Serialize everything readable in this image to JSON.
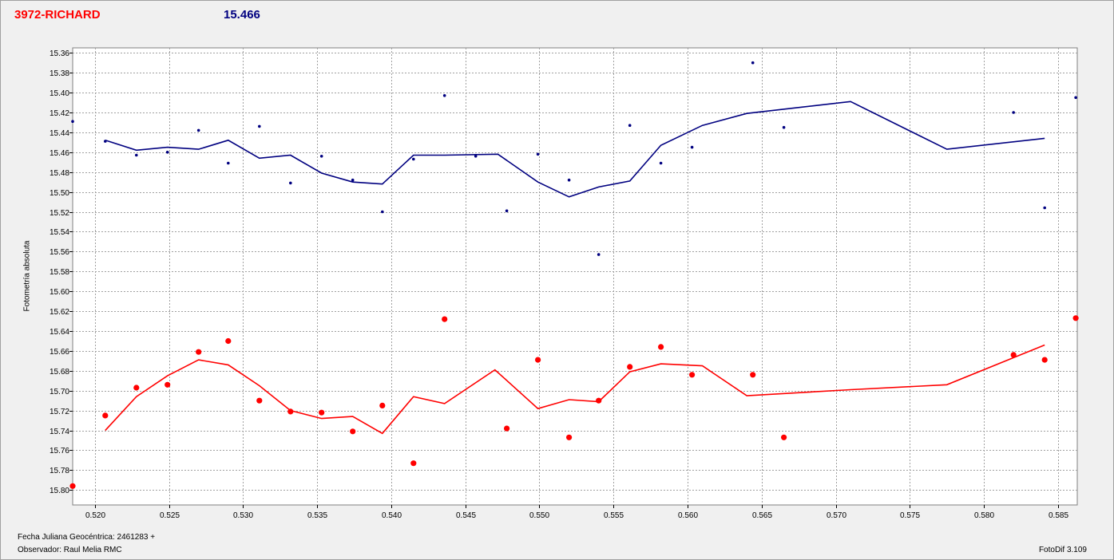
{
  "header": {
    "object_name": "3972-RICHARD",
    "magnitude": "15.466"
  },
  "footer": {
    "jd_label": "Fecha Juliana Geocéntrica: 2461283 +",
    "observer_label": "Observador: Raul Melia RMC",
    "software": "FotoDif 3.109"
  },
  "chart_data": {
    "type": "scatter",
    "title": "",
    "xlabel": "",
    "ylabel": "Fotometría absoluta",
    "xlim": [
      0.5185,
      0.5863
    ],
    "ylim": [
      15.355,
      15.815
    ],
    "y_inverted": true,
    "grid": true,
    "x_ticks": [
      "0.520",
      "0.525",
      "0.530",
      "0.535",
      "0.540",
      "0.545",
      "0.550",
      "0.555",
      "0.560",
      "0.565",
      "0.570",
      "0.575",
      "0.580",
      "0.585"
    ],
    "x_tick_values": [
      0.52,
      0.525,
      0.53,
      0.535,
      0.54,
      0.545,
      0.55,
      0.555,
      0.56,
      0.565,
      0.57,
      0.575,
      0.58,
      0.585
    ],
    "y_ticks": [
      "15.36",
      "15.38",
      "15.40",
      "15.42",
      "15.44",
      "15.46",
      "15.48",
      "15.50",
      "15.52",
      "15.54",
      "15.56",
      "15.58",
      "15.60",
      "15.62",
      "15.64",
      "15.66",
      "15.68",
      "15.70",
      "15.72",
      "15.74",
      "15.76",
      "15.78",
      "15.80"
    ],
    "y_tick_values": [
      15.36,
      15.38,
      15.4,
      15.42,
      15.44,
      15.46,
      15.48,
      15.5,
      15.52,
      15.54,
      15.56,
      15.58,
      15.6,
      15.62,
      15.64,
      15.66,
      15.68,
      15.7,
      15.72,
      15.74,
      15.76,
      15.78,
      15.8
    ],
    "series": [
      {
        "color": "#000080",
        "marker": "small-dot",
        "points": [
          [
            0.5185,
            15.429
          ],
          [
            0.5207,
            15.449
          ],
          [
            0.5228,
            15.463
          ],
          [
            0.5249,
            15.46
          ],
          [
            0.527,
            15.438
          ],
          [
            0.529,
            15.471
          ],
          [
            0.5311,
            15.434
          ],
          [
            0.5332,
            15.491
          ],
          [
            0.5353,
            15.464
          ],
          [
            0.5374,
            15.488
          ],
          [
            0.5394,
            15.52
          ],
          [
            0.5415,
            15.467
          ],
          [
            0.5436,
            15.403
          ],
          [
            0.5457,
            15.464
          ],
          [
            0.5478,
            15.519
          ],
          [
            0.5499,
            15.462
          ],
          [
            0.552,
            15.488
          ],
          [
            0.554,
            15.563
          ],
          [
            0.5561,
            15.433
          ],
          [
            0.5582,
            15.471
          ],
          [
            0.5603,
            15.455
          ],
          [
            0.5644,
            15.37
          ],
          [
            0.5665,
            15.435
          ],
          [
            0.582,
            15.42
          ],
          [
            0.5841,
            15.516
          ],
          [
            0.5862,
            15.405
          ]
        ],
        "trend": [
          [
            0.5207,
            15.448
          ],
          [
            0.5228,
            15.458
          ],
          [
            0.5249,
            15.455
          ],
          [
            0.527,
            15.457
          ],
          [
            0.529,
            15.448
          ],
          [
            0.5311,
            15.466
          ],
          [
            0.5332,
            15.463
          ],
          [
            0.5353,
            15.481
          ],
          [
            0.5374,
            15.49
          ],
          [
            0.5394,
            15.492
          ],
          [
            0.5415,
            15.463
          ],
          [
            0.5436,
            15.463
          ],
          [
            0.5472,
            15.462
          ],
          [
            0.5499,
            15.49
          ],
          [
            0.552,
            15.505
          ],
          [
            0.554,
            15.495
          ],
          [
            0.5561,
            15.489
          ],
          [
            0.5582,
            15.453
          ],
          [
            0.561,
            15.433
          ],
          [
            0.564,
            15.421
          ],
          [
            0.571,
            15.409
          ],
          [
            0.5775,
            15.457
          ],
          [
            0.5841,
            15.446
          ]
        ]
      },
      {
        "color": "#ff0000",
        "marker": "big-dot",
        "points": [
          [
            0.5185,
            15.796
          ],
          [
            0.5207,
            15.725
          ],
          [
            0.5228,
            15.697
          ],
          [
            0.5249,
            15.694
          ],
          [
            0.527,
            15.661
          ],
          [
            0.529,
            15.65
          ],
          [
            0.5311,
            15.71
          ],
          [
            0.5332,
            15.721
          ],
          [
            0.5353,
            15.722
          ],
          [
            0.5374,
            15.741
          ],
          [
            0.5394,
            15.715
          ],
          [
            0.5415,
            15.773
          ],
          [
            0.5436,
            15.628
          ],
          [
            0.5478,
            15.738
          ],
          [
            0.5499,
            15.669
          ],
          [
            0.552,
            15.747
          ],
          [
            0.554,
            15.71
          ],
          [
            0.5561,
            15.676
          ],
          [
            0.5582,
            15.656
          ],
          [
            0.5603,
            15.684
          ],
          [
            0.5644,
            15.684
          ],
          [
            0.5665,
            15.747
          ],
          [
            0.582,
            15.664
          ],
          [
            0.5841,
            15.669
          ],
          [
            0.5862,
            15.627
          ]
        ],
        "trend": [
          [
            0.5207,
            15.74
          ],
          [
            0.5228,
            15.706
          ],
          [
            0.5249,
            15.685
          ],
          [
            0.527,
            15.669
          ],
          [
            0.529,
            15.674
          ],
          [
            0.5311,
            15.695
          ],
          [
            0.5332,
            15.72
          ],
          [
            0.5353,
            15.728
          ],
          [
            0.5374,
            15.726
          ],
          [
            0.5394,
            15.743
          ],
          [
            0.5415,
            15.706
          ],
          [
            0.5436,
            15.713
          ],
          [
            0.547,
            15.679
          ],
          [
            0.5499,
            15.718
          ],
          [
            0.552,
            15.709
          ],
          [
            0.554,
            15.711
          ],
          [
            0.5561,
            15.681
          ],
          [
            0.5582,
            15.673
          ],
          [
            0.561,
            15.675
          ],
          [
            0.564,
            15.705
          ],
          [
            0.571,
            15.699
          ],
          [
            0.5775,
            15.694
          ],
          [
            0.5841,
            15.654
          ]
        ]
      }
    ]
  }
}
